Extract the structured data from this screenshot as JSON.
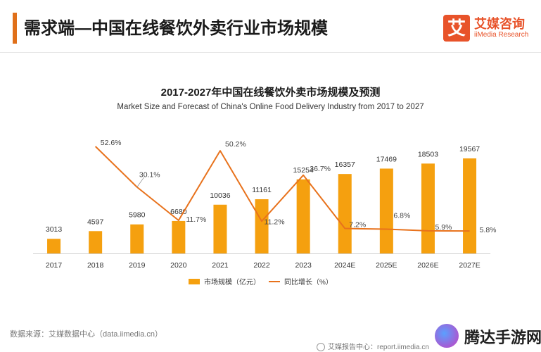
{
  "header": {
    "title": "需求端—中国在线餐饮外卖行业市场规模",
    "logo_mark": "艾",
    "logo_cn": "艾媒咨询",
    "logo_en": "iiMedia Research"
  },
  "source": "数据来源：艾媒数据中心（data.iimedia.cn）",
  "footer": {
    "report": "艾媒报告中心：report.iimedia.cn"
  },
  "watermark": {
    "text": "腾达手游网"
  },
  "chart_data": {
    "type": "bar",
    "title": "2017-2027年中国在线餐饮外卖市场规模及预测",
    "subtitle": "Market Size and Forecast of China's Online Food Delivery Industry from 2017 to 2027",
    "categories": [
      "2017",
      "2018",
      "2019",
      "2020",
      "2021",
      "2022",
      "2023",
      "2024E",
      "2025E",
      "2026E",
      "2027E"
    ],
    "series": [
      {
        "name": "市场规模（亿元）",
        "type": "bar",
        "color": "#f5a00f",
        "values": [
          3013,
          4597,
          5980,
          6680,
          10036,
          11161,
          15254,
          16357,
          17469,
          18503,
          19567
        ]
      },
      {
        "name": "同比增长（%）",
        "type": "line",
        "color": "#e8721c",
        "values": [
          null,
          52.6,
          30.1,
          11.7,
          50.2,
          11.2,
          36.7,
          7.2,
          6.8,
          5.9,
          5.8
        ],
        "labels": [
          "",
          "52.6%",
          "30.1%",
          "11.7%",
          "50.2%",
          "11.2%",
          "36.7%",
          "7.2%",
          "6.8%",
          "5.9%",
          "5.8%"
        ]
      }
    ],
    "legend_position": "bottom",
    "grid": false
  }
}
